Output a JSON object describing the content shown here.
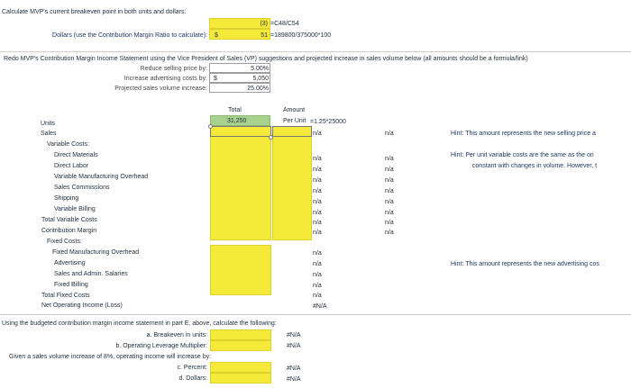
{
  "part_d": {
    "title": "Calculate MVP's current breakeven point in both units and dollars:",
    "units_label": "Units:",
    "units_value": "(3)",
    "units_formula": "=C48/C54",
    "dollars_label": "Dollars (use the Contribution Margin Ratio to calculate):",
    "dollars_currency": "$",
    "dollars_value": "51",
    "dollars_formula": "=189800/375000*100"
  },
  "part_e": {
    "title": "Redo MVP's Contribution Margin Income Statement using the Vice President of Sales (VP) suggestions and projected increase in sales volume below (all amounts should be a formula/link)",
    "inputs": [
      {
        "label": "Reduce selling price by:",
        "currency": "",
        "value": "5.00%"
      },
      {
        "label": "Increase advertising costs by:",
        "currency": "$",
        "value": "5,050"
      },
      {
        "label": "Projected sales volume increase:",
        "currency": "",
        "value": "25.00%"
      }
    ]
  },
  "statement": {
    "col_total": "Total",
    "col_amount": "Amount",
    "col_per_unit": "Per Unit",
    "total_units": "31,250",
    "units_formula": "=1.25*25000",
    "rows": [
      {
        "label": "Units",
        "c": "",
        "d": ""
      },
      {
        "label": "Sales",
        "c": "n/a",
        "d": "n/a"
      },
      {
        "label": "Variable Costs:",
        "c": "",
        "d": ""
      },
      {
        "label": "Direct Materials",
        "c": "n/a",
        "d": "n/a"
      },
      {
        "label": "Direct Labor",
        "c": "n/a",
        "d": "n/a"
      },
      {
        "label": "Variable Manufacturing Overhead",
        "c": "n/a",
        "d": "n/a"
      },
      {
        "label": "Sales Commissions",
        "c": "n/a",
        "d": "n/a"
      },
      {
        "label": "Shipping",
        "c": "n/a",
        "d": "n/a"
      },
      {
        "label": "Variable Billing",
        "c": "n/a",
        "d": "n/a"
      },
      {
        "label": "Total Variable Costs",
        "c": "n/a",
        "d": "n/a"
      },
      {
        "label": "Contribution Margin",
        "c": "n/a",
        "d": "n/a"
      },
      {
        "label": "Fixed Costs:",
        "c": "",
        "d": ""
      },
      {
        "label": "Fixed Manufacturing Overhead",
        "c": "n/a",
        "d": ""
      },
      {
        "label": "Advertising",
        "c": "n/a",
        "d": ""
      },
      {
        "label": "Sales and Admin. Salaries",
        "c": "n/a",
        "d": ""
      },
      {
        "label": "Fixed Billing",
        "c": "n/a",
        "d": ""
      },
      {
        "label": "Total Fixed Costs",
        "c": "n/a",
        "d": ""
      },
      {
        "label": "Net Operating Income (Loss)",
        "c": "#N/A",
        "d": ""
      }
    ],
    "hints": [
      "Hint:  This amount represents the new selling price a",
      "Hint:  Per unit variable costs are the same as the ori",
      "constant with changes in volume.  However, t",
      "Hint:  This amount represents the new advertising cos"
    ]
  },
  "part_f": {
    "title": "Using the budgeted contribution margin income statement in part E. above, calculate the following:",
    "items": [
      {
        "label": "a. Breakeven in units:",
        "value": "#N/A"
      },
      {
        "label": "b. Operating Leverage Multiplier:",
        "value": "#N/A"
      },
      {
        "label": "Given a sales volume increase of 8%, operating income will increase by:",
        "value": ""
      },
      {
        "label": "c. Percent:",
        "value": "#N/A"
      },
      {
        "label": "d. Dollars:",
        "value": "#N/A"
      }
    ]
  }
}
